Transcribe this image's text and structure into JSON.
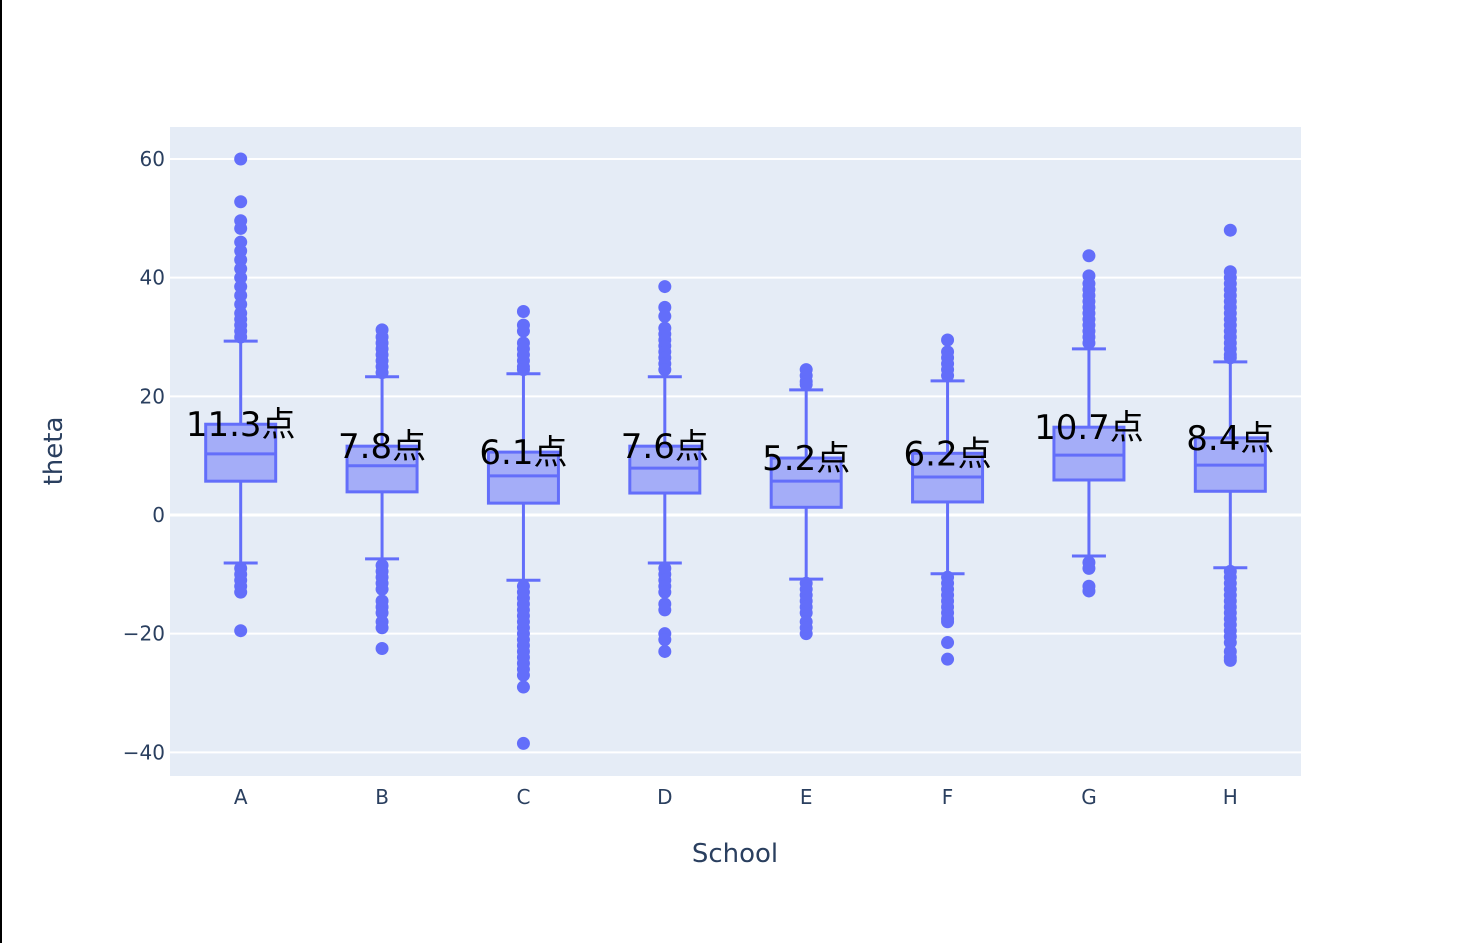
{
  "chart_data": {
    "type": "box",
    "title": "",
    "xlabel": "School",
    "ylabel": "theta",
    "categories": [
      "A",
      "B",
      "C",
      "D",
      "E",
      "F",
      "G",
      "H"
    ],
    "ylim": [
      -44,
      66
    ],
    "yticks": [
      60,
      40,
      20,
      0,
      -20,
      -40
    ],
    "ytick_labels": [
      "60",
      "40",
      "20",
      "0",
      "−20",
      "−40"
    ],
    "grid": true,
    "legend": false,
    "box_color": "#636efa",
    "box_fill": "rgba(99,110,250,0.5)",
    "plot_bg": "#e5ecf6",
    "series": [
      {
        "name": "A",
        "q1": 5.7,
        "median": 10.3,
        "q3": 15.3,
        "lowerfence": -8.1,
        "upperfence": 29.3,
        "annotation": "11.3点",
        "outliers": [
          60,
          52.8,
          49.6,
          48.3,
          46,
          44.5,
          43,
          41.5,
          40,
          38.5,
          37,
          35.5,
          34,
          33,
          32,
          31,
          30,
          -9,
          -10,
          -11,
          -12,
          -13,
          -19.5
        ]
      },
      {
        "name": "B",
        "q1": 3.9,
        "median": 8.3,
        "q3": 11.6,
        "lowerfence": -7.4,
        "upperfence": 23.3,
        "annotation": "7.8点",
        "outliers": [
          31.2,
          30,
          29,
          28,
          27,
          26,
          25,
          24,
          -8.5,
          -9.5,
          -10.5,
          -11.5,
          -12.5,
          -14.5,
          -15.5,
          -16.5,
          -18,
          -19,
          -22.5
        ]
      },
      {
        "name": "C",
        "q1": 2.0,
        "median": 6.6,
        "q3": 10.6,
        "lowerfence": -11.0,
        "upperfence": 23.8,
        "annotation": "6.1点",
        "outliers": [
          34.3,
          32,
          31,
          29,
          28,
          27,
          26,
          25,
          24.5,
          -12,
          -13,
          -14,
          -15,
          -16,
          -17,
          -18,
          -19,
          -20,
          -21,
          -22,
          -23,
          -24,
          -25,
          -26,
          -27,
          -29,
          -38.5
        ]
      },
      {
        "name": "D",
        "q1": 3.7,
        "median": 7.9,
        "q3": 11.6,
        "lowerfence": -8.1,
        "upperfence": 23.3,
        "annotation": "7.6点",
        "outliers": [
          38.5,
          35,
          33.5,
          31.5,
          30.5,
          29.5,
          28.5,
          27.5,
          26.5,
          25.5,
          24.5,
          -9,
          -10,
          -11,
          -12,
          -13,
          -15,
          -16,
          -20,
          -21,
          -23
        ]
      },
      {
        "name": "E",
        "q1": 1.3,
        "median": 5.7,
        "q3": 9.6,
        "lowerfence": -10.8,
        "upperfence": 21.1,
        "annotation": "5.2点",
        "outliers": [
          24.5,
          23.5,
          22.5,
          22,
          -11.5,
          -12.5,
          -13.5,
          -14.5,
          -15.5,
          -16.5,
          -18,
          -19,
          -20
        ]
      },
      {
        "name": "F",
        "q1": 2.2,
        "median": 6.4,
        "q3": 10.4,
        "lowerfence": -9.9,
        "upperfence": 22.6,
        "annotation": "6.2点",
        "outliers": [
          29.5,
          27.5,
          26.5,
          25.5,
          24.5,
          23.5,
          -10.5,
          -11.5,
          -12.5,
          -13.5,
          -14.5,
          -15.5,
          -16.5,
          -17.5,
          -18,
          -21.5,
          -24.3
        ]
      },
      {
        "name": "G",
        "q1": 5.9,
        "median": 10.1,
        "q3": 14.8,
        "lowerfence": -6.9,
        "upperfence": 28.0,
        "annotation": "10.7点",
        "outliers": [
          43.7,
          40.3,
          39,
          38,
          37,
          36,
          35,
          34,
          33,
          32,
          31,
          30,
          29,
          -8,
          -9,
          -12,
          -12.8
        ]
      },
      {
        "name": "H",
        "q1": 4.0,
        "median": 8.4,
        "q3": 13.0,
        "lowerfence": -8.9,
        "upperfence": 25.8,
        "annotation": "8.4点",
        "outliers": [
          48,
          41,
          40,
          39,
          38,
          37,
          36,
          35,
          34,
          33,
          32,
          31,
          30,
          29,
          28,
          27,
          26.5,
          -9.5,
          -10.5,
          -11.5,
          -12.5,
          -13.5,
          -14.5,
          -15.5,
          -16.5,
          -17.5,
          -18.5,
          -19.5,
          -20.5,
          -21.5,
          -23,
          -24,
          -24.5
        ]
      }
    ]
  }
}
